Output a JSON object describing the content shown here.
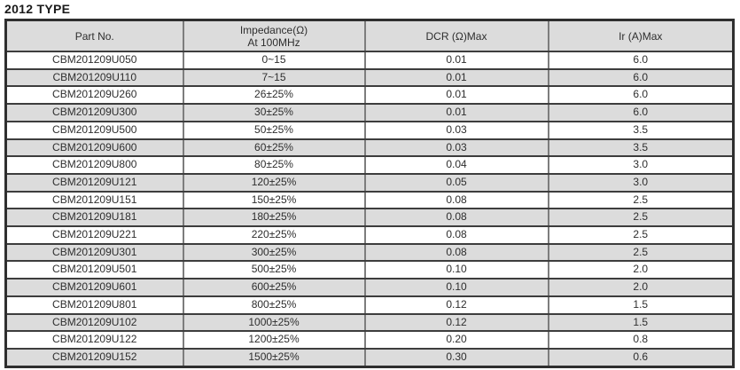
{
  "page": {
    "title": "2012 TYPE"
  },
  "colors": {
    "header_bg": "#dcdcdc",
    "alt_row_bg": "#dcdcdc",
    "row_bg": "#ffffff",
    "border_dark": "#3d3d3d",
    "border_light": "#7d7d7d",
    "text": "#2e2e2e"
  },
  "table": {
    "headers": [
      "Part No.",
      "Impedance(Ω)\nAt 100MHz",
      "DCR (Ω)Max",
      "Ir (A)Max"
    ],
    "rows": [
      [
        "CBM201209U050",
        "0~15",
        "0.01",
        "6.0"
      ],
      [
        "CBM201209U110",
        "7~15",
        "0.01",
        "6.0"
      ],
      [
        "CBM201209U260",
        "26±25%",
        "0.01",
        "6.0"
      ],
      [
        "CBM201209U300",
        "30±25%",
        "0.01",
        "6.0"
      ],
      [
        "CBM201209U500",
        "50±25%",
        "0.03",
        "3.5"
      ],
      [
        "CBM201209U600",
        "60±25%",
        "0.03",
        "3.5"
      ],
      [
        "CBM201209U800",
        "80±25%",
        "0.04",
        "3.0"
      ],
      [
        "CBM201209U121",
        "120±25%",
        "0.05",
        "3.0"
      ],
      [
        "CBM201209U151",
        "150±25%",
        "0.08",
        "2.5"
      ],
      [
        "CBM201209U181",
        "180±25%",
        "0.08",
        "2.5"
      ],
      [
        "CBM201209U221",
        "220±25%",
        "0.08",
        "2.5"
      ],
      [
        "CBM201209U301",
        "300±25%",
        "0.08",
        "2.5"
      ],
      [
        "CBM201209U501",
        "500±25%",
        "0.10",
        "2.0"
      ],
      [
        "CBM201209U601",
        "600±25%",
        "0.10",
        "2.0"
      ],
      [
        "CBM201209U801",
        "800±25%",
        "0.12",
        "1.5"
      ],
      [
        "CBM201209U102",
        "1000±25%",
        "0.12",
        "1.5"
      ],
      [
        "CBM201209U122",
        "1200±25%",
        "0.20",
        "0.8"
      ],
      [
        "CBM201209U152",
        "1500±25%",
        "0.30",
        "0.6"
      ]
    ],
    "column_names": [
      "part-no",
      "impedance",
      "dcr",
      "ir"
    ]
  }
}
